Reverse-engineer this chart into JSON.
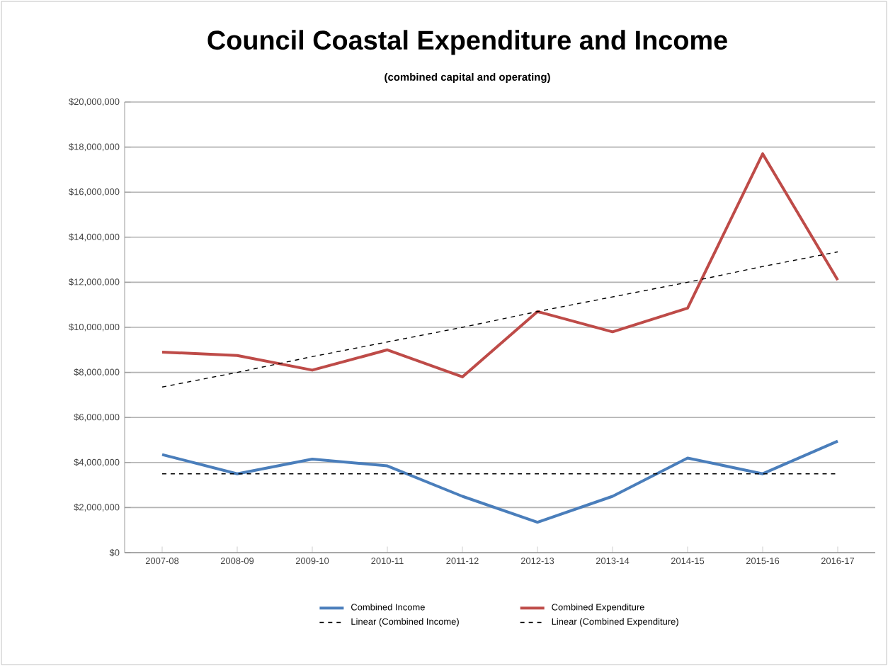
{
  "chart_data": {
    "type": "line",
    "title": "Council Coastal Expenditure and Income",
    "subtitle": "(combined capital and operating)",
    "categories": [
      "2007-08",
      "2008-09",
      "2009-10",
      "2010-11",
      "2011-12",
      "2012-13",
      "2013-14",
      "2014-15",
      "2015-16",
      "2016-17"
    ],
    "series": [
      {
        "name": "Combined Income",
        "color": "#4a7ebb",
        "values": [
          4350000,
          3500000,
          4150000,
          3850000,
          2500000,
          1350000,
          2500000,
          4200000,
          3500000,
          4950000
        ]
      },
      {
        "name": "Combined Expenditure",
        "color": "#be4b48",
        "values": [
          8900000,
          8750000,
          8100000,
          9000000,
          7800000,
          10700000,
          9800000,
          10850000,
          17700000,
          12100000
        ]
      },
      {
        "name": "Linear (Combined Income)",
        "color": "#000000",
        "line_style": "dashed",
        "values": [
          3500000,
          3500000,
          3500000,
          3500000,
          3500000,
          3500000,
          3500000,
          3500000,
          3500000,
          3500000
        ]
      },
      {
        "name": "Linear (Combined Expenditure)",
        "color": "#000000",
        "line_style": "dashed",
        "values": [
          7350000,
          8000000,
          8700000,
          9350000,
          10000000,
          10700000,
          11350000,
          12000000,
          12700000,
          13350000
        ]
      }
    ],
    "ylim": [
      0,
      20000000
    ],
    "yticks": [
      {
        "value": 0,
        "label": "$0"
      },
      {
        "value": 2000000,
        "label": "$2,000,000"
      },
      {
        "value": 4000000,
        "label": "$4,000,000"
      },
      {
        "value": 6000000,
        "label": "$6,000,000"
      },
      {
        "value": 8000000,
        "label": "$8,000,000"
      },
      {
        "value": 10000000,
        "label": "$10,000,000"
      },
      {
        "value": 12000000,
        "label": "$12,000,000"
      },
      {
        "value": 14000000,
        "label": "$14,000,000"
      },
      {
        "value": 16000000,
        "label": "$16,000,000"
      },
      {
        "value": 18000000,
        "label": "$18,000,000"
      },
      {
        "value": 20000000,
        "label": "$20,000,000"
      }
    ],
    "grid": "y",
    "legend": "bottom",
    "marker": "none",
    "line_style": "solid"
  }
}
